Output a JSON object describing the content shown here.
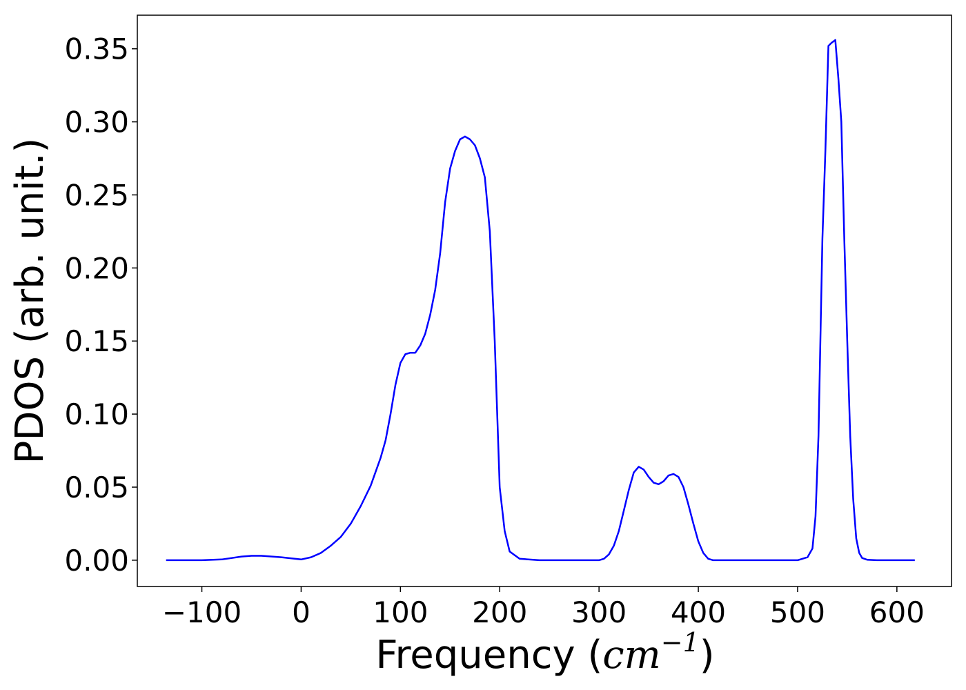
{
  "chart_data": {
    "type": "line",
    "xlabel": "Frequency (",
    "xlabel_italic": "cm",
    "xlabel_sup": "−1",
    "xlabel_close": ")",
    "ylabel": "PDOS (arb. unit.)",
    "xlim": [
      -165,
      655
    ],
    "ylim": [
      -0.018,
      0.373
    ],
    "xticks": [
      -100,
      0,
      100,
      200,
      300,
      400,
      500,
      600
    ],
    "xtick_labels": [
      "−100",
      "0",
      "100",
      "200",
      "300",
      "400",
      "500",
      "600"
    ],
    "yticks": [
      0.0,
      0.05,
      0.1,
      0.15,
      0.2,
      0.25,
      0.3,
      0.35
    ],
    "ytick_labels": [
      "0.00",
      "0.05",
      "0.10",
      "0.15",
      "0.20",
      "0.25",
      "0.30",
      "0.35"
    ],
    "grid": false,
    "line_color": "#0000ff",
    "series": [
      {
        "x": [
          -136,
          -100,
          -80,
          -60,
          -50,
          -40,
          -20,
          0,
          10,
          20,
          30,
          40,
          50,
          60,
          70,
          80,
          85,
          90,
          95,
          100,
          105,
          110,
          115,
          120,
          125,
          130,
          135,
          140,
          145,
          150,
          155,
          160,
          165,
          170,
          175,
          180,
          185,
          190,
          195,
          200,
          205,
          210,
          220,
          240,
          260,
          280,
          300,
          305,
          310,
          315,
          320,
          325,
          330,
          335,
          340,
          345,
          350,
          355,
          360,
          365,
          370,
          375,
          380,
          385,
          390,
          395,
          400,
          405,
          410,
          415,
          420,
          440,
          460,
          480,
          500,
          510,
          515,
          518,
          521,
          525,
          528,
          531,
          534,
          538,
          541,
          544,
          547,
          550,
          553,
          556,
          559,
          562,
          565,
          570,
          580,
          600,
          618
        ],
        "y": [
          0.0,
          0.0,
          0.0005,
          0.0025,
          0.003,
          0.003,
          0.002,
          0.0005,
          0.002,
          0.005,
          0.01,
          0.016,
          0.025,
          0.037,
          0.051,
          0.07,
          0.082,
          0.1,
          0.12,
          0.135,
          0.141,
          0.142,
          0.142,
          0.147,
          0.155,
          0.168,
          0.185,
          0.21,
          0.245,
          0.268,
          0.28,
          0.288,
          0.29,
          0.288,
          0.284,
          0.275,
          0.262,
          0.225,
          0.15,
          0.05,
          0.02,
          0.006,
          0.001,
          0.0,
          0.0,
          0.0,
          0.0,
          0.001,
          0.004,
          0.01,
          0.02,
          0.034,
          0.048,
          0.06,
          0.064,
          0.062,
          0.057,
          0.053,
          0.052,
          0.054,
          0.058,
          0.059,
          0.057,
          0.05,
          0.038,
          0.025,
          0.013,
          0.005,
          0.001,
          0.0,
          0.0,
          0.0,
          0.0,
          0.0,
          0.0,
          0.002,
          0.008,
          0.03,
          0.085,
          0.22,
          0.28,
          0.352,
          0.354,
          0.356,
          0.33,
          0.3,
          0.22,
          0.15,
          0.085,
          0.042,
          0.015,
          0.005,
          0.0015,
          0.0003,
          0.0,
          0.0,
          0.0
        ]
      }
    ]
  }
}
